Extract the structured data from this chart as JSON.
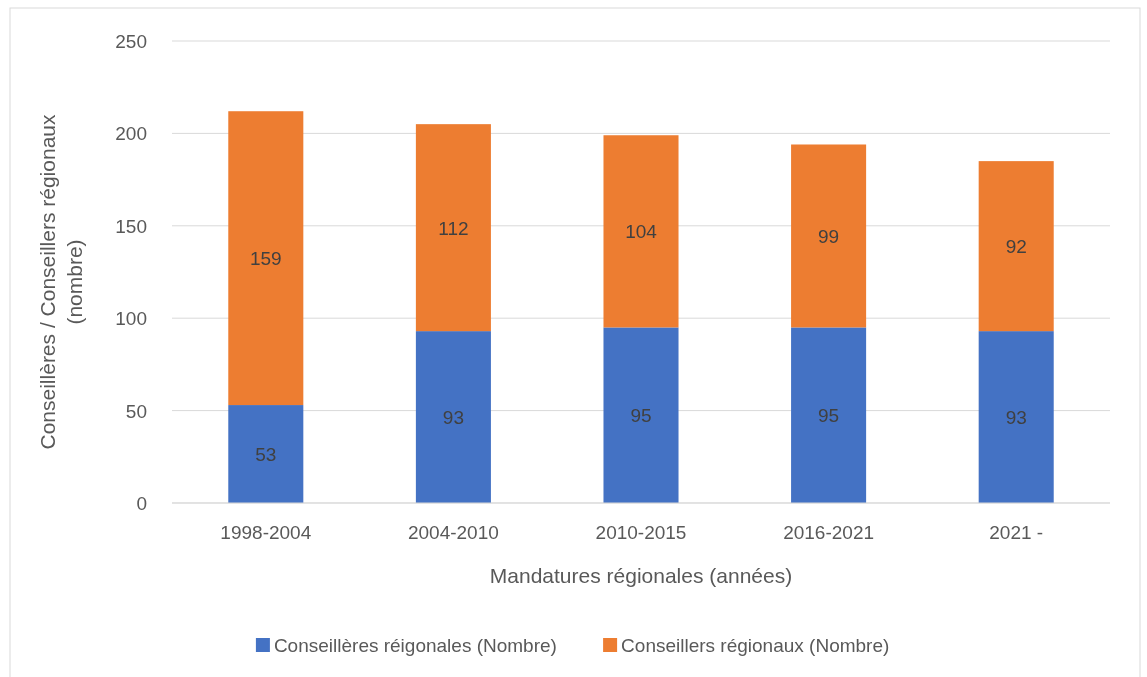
{
  "chart_data": {
    "type": "bar",
    "stacked": true,
    "xlabel": "Mandatures régionales (années)",
    "ylabel": "Conseillères / Conseillers régionaux (nombre)",
    "categories": [
      "1998-2004",
      "2004-2010",
      "2010-2015",
      "2016-2021",
      "2021 -"
    ],
    "series": [
      {
        "name": "Conseillères réigonales (Nombre)",
        "color": "#4472c4",
        "values": [
          53,
          93,
          95,
          95,
          93
        ]
      },
      {
        "name": "Conseillers régionaux (Nombre)",
        "color": "#ed7d31",
        "values": [
          159,
          112,
          104,
          99,
          92
        ]
      }
    ],
    "ylim": [
      0,
      250
    ],
    "yticks": [
      0,
      50,
      100,
      150,
      200,
      250
    ],
    "grid": "y",
    "legend": "bottom",
    "data_labels": true
  }
}
